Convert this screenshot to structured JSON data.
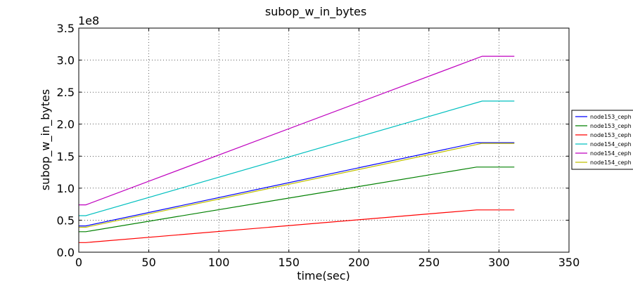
{
  "chart_data": {
    "type": "line",
    "title": "subop_w_in_bytes",
    "xlabel": "time(sec)",
    "ylabel": "subop_w_in_bytes",
    "y_offset_label": "1e8",
    "xlim": [
      0,
      350
    ],
    "ylim": [
      0,
      3.5
    ],
    "xticks": [
      "0",
      "50",
      "100",
      "150",
      "200",
      "250",
      "300",
      "350"
    ],
    "yticks": [
      "0.0",
      "0.5",
      "1.0",
      "1.5",
      "2.0",
      "2.5",
      "3.0",
      "3.5"
    ],
    "grid": true,
    "legend_position": "right",
    "series": [
      {
        "name": "node153_ceph",
        "color": "#0000ff",
        "x": [
          0,
          5,
          284,
          311
        ],
        "y": [
          0.41,
          0.41,
          1.71,
          1.71
        ]
      },
      {
        "name": "node153_ceph",
        "color": "#008000",
        "x": [
          0,
          5,
          284,
          311
        ],
        "y": [
          0.32,
          0.32,
          1.33,
          1.33
        ]
      },
      {
        "name": "node153_ceph",
        "color": "#ff0000",
        "x": [
          0,
          5,
          284,
          311
        ],
        "y": [
          0.15,
          0.15,
          0.66,
          0.66
        ]
      },
      {
        "name": "node154_ceph",
        "color": "#00bfbf",
        "x": [
          0,
          5,
          288,
          311
        ],
        "y": [
          0.57,
          0.57,
          2.36,
          2.36
        ]
      },
      {
        "name": "node154_ceph",
        "color": "#bf00bf",
        "x": [
          0,
          5,
          288,
          311
        ],
        "y": [
          0.74,
          0.74,
          3.06,
          3.06
        ]
      },
      {
        "name": "node154_ceph",
        "color": "#bfbf00",
        "x": [
          0,
          5,
          288,
          311
        ],
        "y": [
          0.39,
          0.39,
          1.7,
          1.7
        ]
      }
    ]
  }
}
